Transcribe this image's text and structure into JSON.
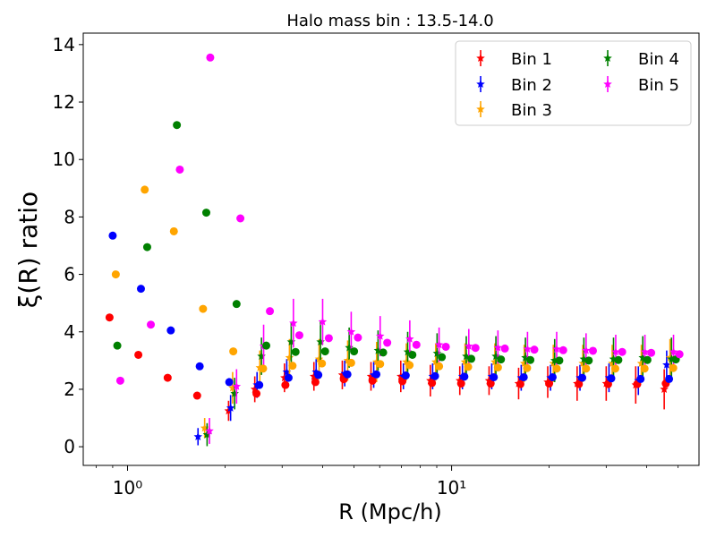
{
  "chart_data": {
    "type": "scatter",
    "title": "Halo mass bin : 13.5-14.0",
    "xlabel": "R  (Mpc/h)",
    "ylabel": "ξ(R) ratio",
    "xscale": "log",
    "xlim": [
      0.73,
      58
    ],
    "ylim": [
      -0.65,
      14.4
    ],
    "x_tick_values": [
      1,
      10
    ],
    "x_tick_labels": [
      "10⁰",
      "10¹"
    ],
    "y_ticks": [
      0,
      2,
      4,
      6,
      8,
      10,
      12,
      14
    ],
    "grid": false,
    "legend": {
      "location": "upper right",
      "columns": 2
    },
    "circles": [
      {
        "name": "Bin 1",
        "color": "#ff0000",
        "points": [
          [
            0.88,
            4.5
          ],
          [
            1.08,
            3.2
          ],
          [
            1.33,
            2.4
          ],
          [
            1.64,
            1.78
          ],
          [
            2.5,
            1.85
          ],
          [
            3.07,
            2.15
          ],
          [
            3.8,
            2.25
          ],
          [
            4.65,
            2.35
          ],
          [
            5.7,
            2.3
          ],
          [
            7.05,
            2.28
          ],
          [
            8.7,
            2.22
          ],
          [
            10.7,
            2.2
          ],
          [
            13.2,
            2.2
          ],
          [
            16.3,
            2.18
          ],
          [
            20.0,
            2.2
          ],
          [
            24.7,
            2.18
          ],
          [
            30.4,
            2.18
          ],
          [
            37.4,
            2.18
          ],
          [
            45.8,
            2.2
          ]
        ]
      },
      {
        "name": "Bin 2",
        "color": "#0000ff",
        "points": [
          [
            0.9,
            7.35
          ],
          [
            1.1,
            5.5
          ],
          [
            1.36,
            4.05
          ],
          [
            1.67,
            2.8
          ],
          [
            2.06,
            2.25
          ],
          [
            2.55,
            2.15
          ],
          [
            3.14,
            2.4
          ],
          [
            3.88,
            2.5
          ],
          [
            4.77,
            2.52
          ],
          [
            5.86,
            2.52
          ],
          [
            7.22,
            2.48
          ],
          [
            8.89,
            2.46
          ],
          [
            10.95,
            2.44
          ],
          [
            13.5,
            2.42
          ],
          [
            16.7,
            2.42
          ],
          [
            20.5,
            2.42
          ],
          [
            25.3,
            2.4
          ],
          [
            31.1,
            2.38
          ],
          [
            38.3,
            2.36
          ],
          [
            46.9,
            2.36
          ]
        ]
      },
      {
        "name": "Bin 3",
        "color": "#ffa500",
        "points": [
          [
            0.92,
            6.0
          ],
          [
            1.13,
            8.95
          ],
          [
            1.39,
            7.5
          ],
          [
            1.71,
            4.8
          ],
          [
            2.12,
            3.32
          ],
          [
            2.62,
            2.72
          ],
          [
            3.23,
            2.82
          ],
          [
            3.98,
            2.9
          ],
          [
            4.9,
            2.92
          ],
          [
            6.02,
            2.88
          ],
          [
            7.42,
            2.84
          ],
          [
            9.15,
            2.8
          ],
          [
            11.25,
            2.78
          ],
          [
            13.9,
            2.76
          ],
          [
            17.1,
            2.74
          ],
          [
            21.1,
            2.72
          ],
          [
            26.0,
            2.72
          ],
          [
            32.0,
            2.72
          ],
          [
            39.4,
            2.72
          ],
          [
            48.3,
            2.74
          ]
        ]
      },
      {
        "name": "Bin 4",
        "color": "#008000",
        "points": [
          [
            0.93,
            3.52
          ],
          [
            1.15,
            6.95
          ],
          [
            1.42,
            11.2
          ],
          [
            1.75,
            8.15
          ],
          [
            2.17,
            4.97
          ],
          [
            2.68,
            3.52
          ],
          [
            3.3,
            3.3
          ],
          [
            4.07,
            3.32
          ],
          [
            5.0,
            3.32
          ],
          [
            6.15,
            3.28
          ],
          [
            7.57,
            3.2
          ],
          [
            9.33,
            3.12
          ],
          [
            11.5,
            3.06
          ],
          [
            14.2,
            3.04
          ],
          [
            17.5,
            3.02
          ],
          [
            21.5,
            3.0
          ],
          [
            26.5,
            3.0
          ],
          [
            32.7,
            3.02
          ],
          [
            40.2,
            3.02
          ],
          [
            49.2,
            3.04
          ]
        ]
      },
      {
        "name": "Bin 5",
        "color": "#ff00ff",
        "points": [
          [
            0.95,
            2.3
          ],
          [
            1.18,
            4.25
          ],
          [
            1.45,
            9.65
          ],
          [
            1.8,
            13.55
          ],
          [
            2.23,
            7.95
          ],
          [
            2.75,
            4.72
          ],
          [
            3.39,
            3.88
          ],
          [
            4.18,
            3.78
          ],
          [
            5.14,
            3.8
          ],
          [
            6.33,
            3.62
          ],
          [
            7.79,
            3.55
          ],
          [
            9.6,
            3.48
          ],
          [
            11.85,
            3.44
          ],
          [
            14.6,
            3.42
          ],
          [
            18.0,
            3.38
          ],
          [
            22.1,
            3.36
          ],
          [
            27.3,
            3.34
          ],
          [
            33.6,
            3.3
          ],
          [
            41.3,
            3.27
          ],
          [
            50.5,
            3.22
          ]
        ]
      }
    ],
    "series": [
      {
        "name": "Bin 1",
        "color": "#ff0000",
        "points": [
          [
            2.05,
            1.25,
            0.35
          ],
          [
            2.47,
            2.0,
            0.45
          ],
          [
            3.05,
            2.4,
            0.5
          ],
          [
            3.76,
            2.45,
            0.5
          ],
          [
            4.6,
            2.5,
            0.5
          ],
          [
            5.64,
            2.45,
            0.5
          ],
          [
            6.97,
            2.45,
            0.55
          ],
          [
            8.6,
            2.3,
            0.55
          ],
          [
            10.6,
            2.3,
            0.5
          ],
          [
            13.05,
            2.3,
            0.5
          ],
          [
            16.1,
            2.2,
            0.55
          ],
          [
            19.8,
            2.25,
            0.55
          ],
          [
            24.4,
            2.2,
            0.6
          ],
          [
            30.0,
            2.2,
            0.6
          ],
          [
            37.0,
            2.15,
            0.65
          ],
          [
            45.3,
            2.0,
            0.7
          ]
        ]
      },
      {
        "name": "Bin 2",
        "color": "#0000ff",
        "points": [
          [
            1.65,
            0.35,
            0.3
          ],
          [
            2.08,
            1.35,
            0.45
          ],
          [
            2.51,
            2.15,
            0.45
          ],
          [
            3.1,
            2.6,
            0.45
          ],
          [
            3.82,
            2.6,
            0.45
          ],
          [
            4.68,
            2.55,
            0.45
          ],
          [
            5.75,
            2.5,
            0.45
          ],
          [
            7.1,
            2.45,
            0.45
          ],
          [
            8.74,
            2.45,
            0.45
          ],
          [
            10.8,
            2.45,
            0.45
          ],
          [
            13.3,
            2.45,
            0.45
          ],
          [
            16.4,
            2.4,
            0.45
          ],
          [
            20.2,
            2.4,
            0.45
          ],
          [
            24.9,
            2.4,
            0.45
          ],
          [
            30.6,
            2.4,
            0.5
          ],
          [
            37.7,
            2.3,
            0.5
          ],
          [
            46.1,
            2.85,
            0.5
          ]
        ]
      },
      {
        "name": "Bin 3",
        "color": "#ffa500",
        "points": [
          [
            1.73,
            0.65,
            0.35
          ],
          [
            2.11,
            2.05,
            0.55
          ],
          [
            2.56,
            2.75,
            0.6
          ],
          [
            3.16,
            3.1,
            0.65
          ],
          [
            3.9,
            3.05,
            0.7
          ],
          [
            4.78,
            3.0,
            0.7
          ],
          [
            5.87,
            2.95,
            0.7
          ],
          [
            7.25,
            2.95,
            0.65
          ],
          [
            8.93,
            2.95,
            0.65
          ],
          [
            11.0,
            2.95,
            0.65
          ],
          [
            13.6,
            2.95,
            0.65
          ],
          [
            16.75,
            2.9,
            0.65
          ],
          [
            20.6,
            2.9,
            0.65
          ],
          [
            25.4,
            2.9,
            0.65
          ],
          [
            31.3,
            2.9,
            0.65
          ],
          [
            38.5,
            2.9,
            0.65
          ],
          [
            47.2,
            3.1,
            0.65
          ]
        ]
      },
      {
        "name": "Bin 4",
        "color": "#008000",
        "points": [
          [
            1.76,
            0.42,
            0.4
          ],
          [
            2.14,
            1.85,
            0.55
          ],
          [
            2.59,
            3.15,
            0.65
          ],
          [
            3.2,
            3.65,
            0.7
          ],
          [
            3.94,
            3.65,
            0.75
          ],
          [
            4.83,
            3.45,
            0.7
          ],
          [
            5.93,
            3.35,
            0.7
          ],
          [
            7.32,
            3.3,
            0.7
          ],
          [
            9.02,
            3.25,
            0.7
          ],
          [
            11.1,
            3.15,
            0.7
          ],
          [
            13.7,
            3.15,
            0.7
          ],
          [
            16.9,
            3.1,
            0.7
          ],
          [
            20.8,
            3.0,
            0.75
          ],
          [
            25.6,
            3.05,
            0.75
          ],
          [
            31.6,
            3.05,
            0.75
          ],
          [
            38.9,
            3.1,
            0.75
          ],
          [
            47.7,
            3.05,
            0.75
          ]
        ]
      },
      {
        "name": "Bin 5",
        "color": "#ff00ff",
        "points": [
          [
            1.79,
            0.55,
            0.45
          ],
          [
            2.17,
            2.1,
            0.6
          ],
          [
            2.63,
            3.5,
            0.75
          ],
          [
            3.25,
            4.3,
            0.85
          ],
          [
            4.0,
            4.35,
            0.8
          ],
          [
            4.9,
            4.0,
            0.7
          ],
          [
            6.02,
            3.85,
            0.7
          ],
          [
            7.43,
            3.75,
            0.65
          ],
          [
            9.15,
            3.55,
            0.6
          ],
          [
            11.3,
            3.5,
            0.6
          ],
          [
            13.9,
            3.45,
            0.6
          ],
          [
            17.15,
            3.4,
            0.6
          ],
          [
            21.1,
            3.4,
            0.6
          ],
          [
            26.0,
            3.35,
            0.6
          ],
          [
            32.1,
            3.3,
            0.6
          ],
          [
            39.5,
            3.3,
            0.6
          ],
          [
            48.4,
            3.3,
            0.6
          ]
        ]
      }
    ]
  }
}
